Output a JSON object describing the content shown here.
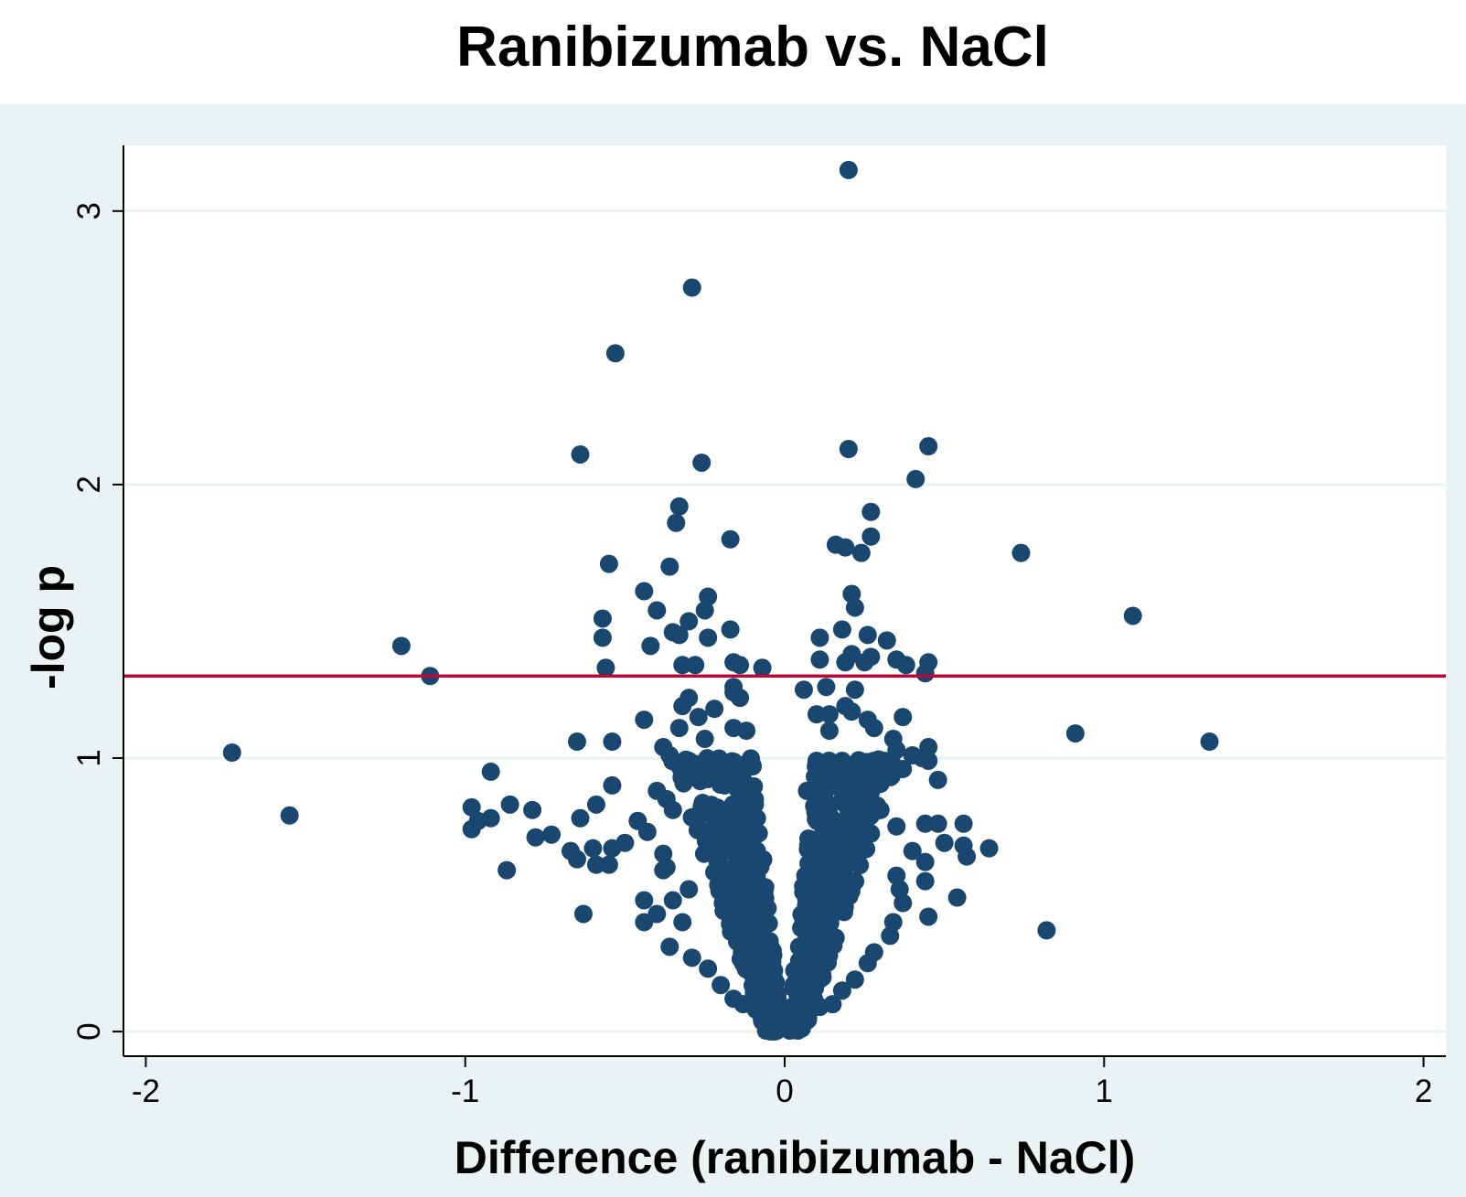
{
  "chart_data": {
    "type": "scatter",
    "title": "Ranibizumab vs. NaCl",
    "xlabel": "Difference (ranibizumab - NaCl)",
    "ylabel": "-log p",
    "xlim": [
      -2.07,
      2.07
    ],
    "ylim": [
      -0.09,
      3.24
    ],
    "x_ticks": [
      -2,
      -1,
      0,
      1,
      2
    ],
    "y_ticks": [
      0,
      1,
      2,
      3
    ],
    "x_tick_labels": [
      "-2",
      "-1",
      "0",
      "1",
      "2"
    ],
    "y_tick_labels": [
      "0",
      "1",
      "2",
      "3"
    ],
    "grid": true,
    "legend": "none",
    "reference_line": {
      "y": 1.3,
      "color": "#c10534"
    },
    "colors": {
      "marker": "#1a476f",
      "plot_background": "#ffffff",
      "outer_background": "#eaf2f3",
      "grid": "#eaf2f3"
    },
    "series": [
      {
        "points": [
          [
            0.2,
            3.15
          ],
          [
            -0.29,
            2.72
          ],
          [
            -0.53,
            2.48
          ],
          [
            -0.64,
            2.11
          ],
          [
            -0.26,
            2.08
          ],
          [
            0.2,
            2.13
          ],
          [
            0.45,
            2.14
          ],
          [
            0.41,
            2.02
          ],
          [
            -0.33,
            1.92
          ],
          [
            -0.34,
            1.86
          ],
          [
            0.27,
            1.9
          ],
          [
            0.27,
            1.81
          ],
          [
            -0.17,
            1.8
          ],
          [
            0.16,
            1.78
          ],
          [
            0.19,
            1.77
          ],
          [
            0.24,
            1.75
          ],
          [
            0.74,
            1.75
          ],
          [
            -0.55,
            1.71
          ],
          [
            -0.36,
            1.7
          ],
          [
            -0.44,
            1.61
          ],
          [
            0.21,
            1.6
          ],
          [
            -0.24,
            1.59
          ],
          [
            0.22,
            1.55
          ],
          [
            -0.4,
            1.54
          ],
          [
            -0.25,
            1.54
          ],
          [
            1.09,
            1.52
          ],
          [
            -0.57,
            1.51
          ],
          [
            -0.3,
            1.5
          ],
          [
            -0.17,
            1.47
          ],
          [
            0.18,
            1.47
          ],
          [
            -0.35,
            1.46
          ],
          [
            -0.33,
            1.45
          ],
          [
            0.26,
            1.45
          ],
          [
            -0.57,
            1.44
          ],
          [
            -0.24,
            1.44
          ],
          [
            0.11,
            1.44
          ],
          [
            0.32,
            1.43
          ],
          [
            -1.2,
            1.41
          ],
          [
            -0.42,
            1.41
          ],
          [
            0.21,
            1.38
          ],
          [
            0.27,
            1.37
          ],
          [
            0.35,
            1.36
          ],
          [
            0.11,
            1.36
          ],
          [
            -0.16,
            1.35
          ],
          [
            0.19,
            1.35
          ],
          [
            0.25,
            1.35
          ],
          [
            -0.28,
            1.34
          ],
          [
            -0.32,
            1.34
          ],
          [
            -0.14,
            1.34
          ],
          [
            0.38,
            1.34
          ],
          [
            0.45,
            1.35
          ],
          [
            -0.56,
            1.33
          ],
          [
            -0.07,
            1.33
          ],
          [
            0.44,
            1.31
          ],
          [
            -1.11,
            1.3
          ],
          [
            -0.16,
            1.26
          ],
          [
            0.13,
            1.26
          ],
          [
            0.06,
            1.25
          ],
          [
            -0.16,
            1.24
          ],
          [
            0.22,
            1.25
          ],
          [
            -0.3,
            1.22
          ],
          [
            -0.14,
            1.22
          ],
          [
            -0.32,
            1.19
          ],
          [
            0.19,
            1.19
          ],
          [
            -0.22,
            1.18
          ],
          [
            0.21,
            1.17
          ],
          [
            0.1,
            1.16
          ],
          [
            0.14,
            1.16
          ],
          [
            -0.44,
            1.14
          ],
          [
            -0.27,
            1.15
          ],
          [
            0.26,
            1.14
          ],
          [
            0.37,
            1.15
          ],
          [
            -0.33,
            1.11
          ],
          [
            -0.16,
            1.11
          ],
          [
            0.28,
            1.11
          ],
          [
            -0.12,
            1.1
          ],
          [
            0.14,
            1.1
          ],
          [
            0.91,
            1.09
          ],
          [
            0.34,
            1.07
          ],
          [
            -0.65,
            1.06
          ],
          [
            -0.54,
            1.06
          ],
          [
            -0.25,
            1.07
          ],
          [
            1.33,
            1.06
          ],
          [
            -0.38,
            1.04
          ],
          [
            0.45,
            1.04
          ],
          [
            0.35,
            1.03
          ],
          [
            -1.73,
            1.02
          ],
          [
            -0.36,
            1.01
          ],
          [
            0.4,
            1.01
          ],
          [
            0.43,
            1.0
          ],
          [
            -0.3,
            0.99
          ],
          [
            0.1,
            0.99
          ],
          [
            0.18,
            0.99
          ],
          [
            0.45,
            0.99
          ],
          [
            -0.1,
            0.97
          ],
          [
            0.37,
            0.96
          ],
          [
            -0.92,
            0.95
          ],
          [
            -0.32,
            0.93
          ],
          [
            -0.13,
            0.92
          ],
          [
            0.13,
            0.92
          ],
          [
            0.26,
            0.92
          ],
          [
            0.48,
            0.92
          ],
          [
            -0.54,
            0.9
          ],
          [
            0.28,
            0.9
          ],
          [
            -0.4,
            0.88
          ],
          [
            0.07,
            0.88
          ],
          [
            0.11,
            0.88
          ],
          [
            -0.37,
            0.85
          ],
          [
            0.23,
            0.85
          ],
          [
            -0.86,
            0.83
          ],
          [
            -0.59,
            0.83
          ],
          [
            -0.98,
            0.82
          ],
          [
            -0.79,
            0.81
          ],
          [
            -0.35,
            0.81
          ],
          [
            0.3,
            0.81
          ],
          [
            -1.55,
            0.79
          ],
          [
            -0.64,
            0.78
          ],
          [
            -0.92,
            0.78
          ],
          [
            -0.96,
            0.77
          ],
          [
            -0.46,
            0.77
          ],
          [
            0.44,
            0.76
          ],
          [
            0.48,
            0.76
          ],
          [
            0.56,
            0.76
          ],
          [
            0.35,
            0.75
          ],
          [
            -0.98,
            0.74
          ],
          [
            -0.43,
            0.73
          ],
          [
            -0.73,
            0.72
          ],
          [
            -0.78,
            0.71
          ],
          [
            0.2,
            0.71
          ],
          [
            -0.5,
            0.69
          ],
          [
            0.5,
            0.69
          ],
          [
            0.56,
            0.68
          ],
          [
            -0.6,
            0.67
          ],
          [
            0.64,
            0.67
          ],
          [
            -0.54,
            0.67
          ],
          [
            -0.67,
            0.66
          ],
          [
            0.4,
            0.66
          ],
          [
            -0.38,
            0.65
          ],
          [
            0.57,
            0.64
          ],
          [
            -0.65,
            0.63
          ],
          [
            0.44,
            0.62
          ],
          [
            -0.59,
            0.61
          ],
          [
            -0.55,
            0.61
          ],
          [
            -0.37,
            0.6
          ],
          [
            -0.87,
            0.59
          ],
          [
            -0.38,
            0.59
          ],
          [
            0.35,
            0.57
          ],
          [
            0.44,
            0.55
          ],
          [
            -0.3,
            0.52
          ],
          [
            0.36,
            0.52
          ],
          [
            0.54,
            0.49
          ],
          [
            -0.44,
            0.48
          ],
          [
            -0.35,
            0.48
          ],
          [
            0.37,
            0.47
          ],
          [
            -0.4,
            0.43
          ],
          [
            0.45,
            0.42
          ],
          [
            -0.63,
            0.43
          ],
          [
            -0.32,
            0.4
          ],
          [
            0.34,
            0.4
          ],
          [
            -0.44,
            0.4
          ],
          [
            0.82,
            0.37
          ],
          [
            0.33,
            0.35
          ],
          [
            -0.36,
            0.31
          ],
          [
            0.28,
            0.29
          ],
          [
            -0.29,
            0.27
          ],
          [
            0.26,
            0.25
          ],
          [
            -0.24,
            0.23
          ],
          [
            0.22,
            0.19
          ],
          [
            -0.2,
            0.17
          ],
          [
            0.18,
            0.15
          ],
          [
            -0.16,
            0.12
          ],
          [
            0.15,
            0.1
          ],
          [
            -0.13,
            0.1
          ],
          [
            0.11,
            0.09
          ],
          [
            -0.09,
            0.08
          ]
        ]
      }
    ],
    "dense_cluster": {
      "description_x": "v-shaped band of points around x = 0",
      "x_range": [
        -0.36,
        0.36
      ],
      "y_range": [
        0,
        1.0
      ]
    }
  }
}
